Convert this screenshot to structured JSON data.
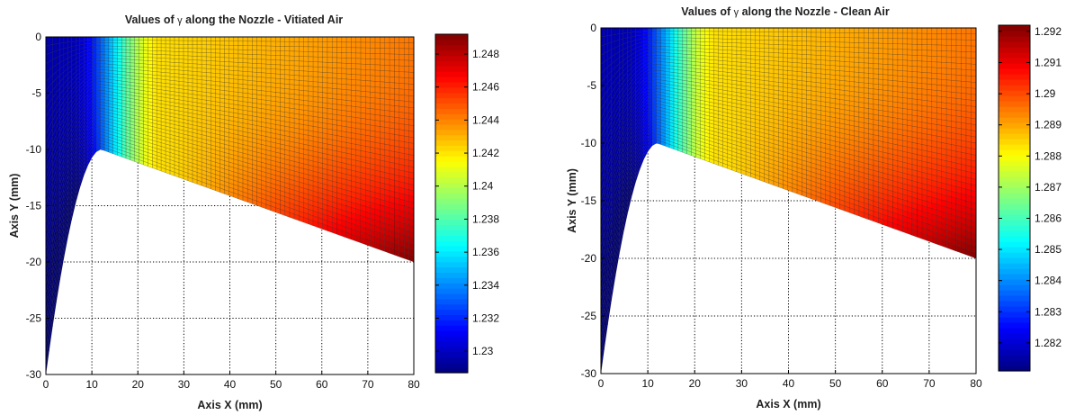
{
  "chart_data": [
    {
      "type": "heatmap",
      "plot_style": "mesh contour over nozzle geometry with colorbar",
      "title_prefix": "Values of",
      "title_symbol": "γ",
      "title_suffix": "along the Nozzle - Vitiated Air",
      "xlabel": "Axis X (mm)",
      "ylabel": "Axis Y (mm)",
      "xlim": [
        0,
        80
      ],
      "ylim": [
        -30,
        0
      ],
      "xticks": [
        0,
        10,
        20,
        30,
        40,
        50,
        60,
        70,
        80
      ],
      "yticks": [
        0,
        -5,
        -10,
        -15,
        -20,
        -25,
        -30
      ],
      "grid": "on (dotted)",
      "colormap": "jet",
      "colorbar": {
        "position": "right",
        "range": [
          1.2287,
          1.2492
        ],
        "ticks": [
          "1.23",
          "1.232",
          "1.234",
          "1.236",
          "1.238",
          "1.24",
          "1.242",
          "1.244",
          "1.246",
          "1.248"
        ]
      },
      "throat_point": [
        12,
        -10
      ],
      "wall_end_point": [
        80,
        -20
      ],
      "min_value_region": "throat and inlet (x < 8 mm)",
      "max_value_region": "exit near wall (x ≈ 80 mm, y ≈ -17 mm)"
    },
    {
      "type": "heatmap",
      "plot_style": "mesh contour over nozzle geometry with colorbar",
      "title_prefix": "Values of",
      "title_symbol": "γ",
      "title_suffix": "along the Nozzle - Clean Air",
      "xlabel": "Axis X (mm)",
      "ylabel": "Axis Y (mm)",
      "xlim": [
        0,
        80
      ],
      "ylim": [
        -30,
        0
      ],
      "xticks": [
        0,
        10,
        20,
        30,
        40,
        50,
        60,
        70,
        80
      ],
      "yticks": [
        0,
        -5,
        -10,
        -15,
        -20,
        -25,
        -30
      ],
      "grid": "on (dotted)",
      "colormap": "jet",
      "colorbar": {
        "position": "right",
        "range": [
          1.2811,
          1.2922
        ],
        "ticks": [
          "1.282",
          "1.283",
          "1.284",
          "1.285",
          "1.286",
          "1.287",
          "1.288",
          "1.289",
          "1.29",
          "1.291",
          "1.292"
        ]
      },
      "throat_point": [
        12,
        -10
      ],
      "wall_end_point": [
        80,
        -20
      ],
      "min_value_region": "throat and inlet (x < 8 mm)",
      "max_value_region": "exit near wall (x ≈ 80 mm, y ≈ -17 mm)"
    }
  ]
}
